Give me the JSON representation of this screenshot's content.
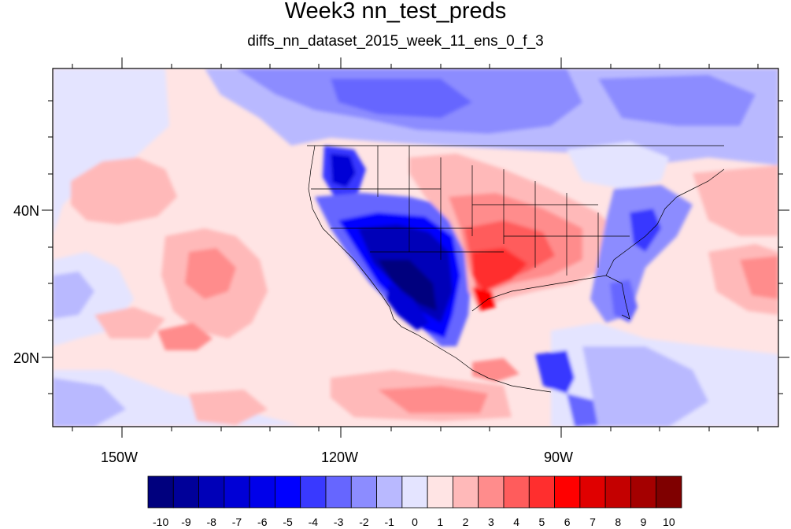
{
  "title": "Week3 nn_test_preds",
  "subtitle": "diffs_nn_dataset_2015_week_11_ens_0_f_3",
  "axes": {
    "lon_labels": [
      "150W",
      "120W",
      "90W"
    ],
    "lat_labels": [
      "40N",
      "20N"
    ]
  },
  "colorbar": {
    "labels": [
      "-10",
      "-9",
      "-8",
      "-7",
      "-6",
      "-5",
      "-4",
      "-3",
      "-2",
      "-1",
      "0",
      "1",
      "2",
      "3",
      "4",
      "5",
      "6",
      "7",
      "8",
      "9",
      "10"
    ],
    "colors": [
      "#00007e",
      "#000099",
      "#0000b8",
      "#0000d6",
      "#0000ea",
      "#0000ff",
      "#3939ff",
      "#6666ff",
      "#8c8cff",
      "#b9b9ff",
      "#e4e4ff",
      "#ffe4e4",
      "#ffb9b9",
      "#ff8c8c",
      "#ff5c5c",
      "#ff2e2e",
      "#ff0000",
      "#e00000",
      "#c40000",
      "#a40000",
      "#7f0000"
    ]
  },
  "colors": {
    "ocean_background": "#e4e4ff",
    "frame": "#000000"
  }
}
